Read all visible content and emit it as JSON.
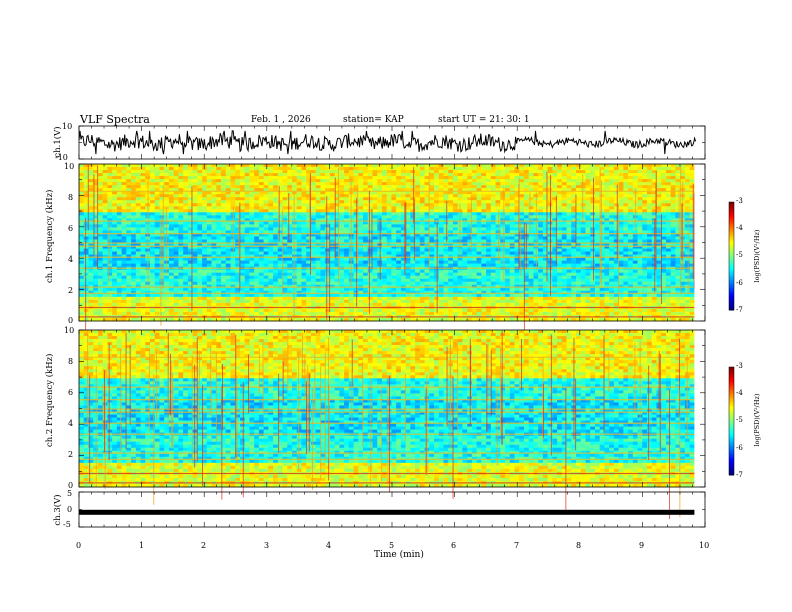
{
  "header": {
    "title": "VLF Spectra",
    "date": "Feb. 1 , 2026",
    "station": "station= KAP",
    "start_ut": "start UT = 21: 30: 1"
  },
  "chart_data": [
    {
      "type": "line",
      "name": "ch.1 waveform",
      "ylabel": "ch.1(V)",
      "ylim": [
        -10,
        10
      ],
      "yticks": [
        "10",
        "-10"
      ],
      "xlim": [
        0,
        10
      ],
      "note": "noisy waveform roughly between -6 and 6 V, quieter after ~7 min"
    },
    {
      "type": "heatmap",
      "name": "ch.1 spectrogram",
      "ylabel": "ch.1 Frequency (kHz)",
      "ylim": [
        0,
        10
      ],
      "yticks": [
        "0",
        "2",
        "4",
        "6",
        "8",
        "10"
      ],
      "xlim": [
        0,
        9.83
      ],
      "colorbar": {
        "label": "log(PSD)(V²/Hz)",
        "range": [
          -7,
          -3
        ],
        "ticks": [
          "-3",
          "-4",
          "-5",
          "-6",
          "-7"
        ]
      }
    },
    {
      "type": "heatmap",
      "name": "ch.2 spectrogram",
      "ylabel": "ch.2 Frequency (kHz)",
      "ylim": [
        0,
        10
      ],
      "yticks": [
        "0",
        "2",
        "4",
        "6",
        "8",
        "10"
      ],
      "xlim": [
        0,
        9.83
      ],
      "colorbar": {
        "label": "log(PSD)(V²/Hz)",
        "range": [
          -7,
          -3
        ],
        "ticks": [
          "-3",
          "-4",
          "-5",
          "-6",
          "-7"
        ]
      }
    },
    {
      "type": "line",
      "name": "ch.3 waveform",
      "ylabel": "ch.3(V)",
      "ylim": [
        -5,
        5
      ],
      "yticks": [
        "5",
        "0",
        "-5"
      ],
      "xlim": [
        0,
        10
      ],
      "level": -0.8,
      "note": "thick nearly constant band just below 0 V from 0 to ~9.8 min"
    }
  ],
  "xaxis": {
    "label": "Time (min)",
    "ticks": [
      "0",
      "1",
      "2",
      "3",
      "4",
      "5",
      "6",
      "7",
      "8",
      "9",
      "10"
    ]
  }
}
